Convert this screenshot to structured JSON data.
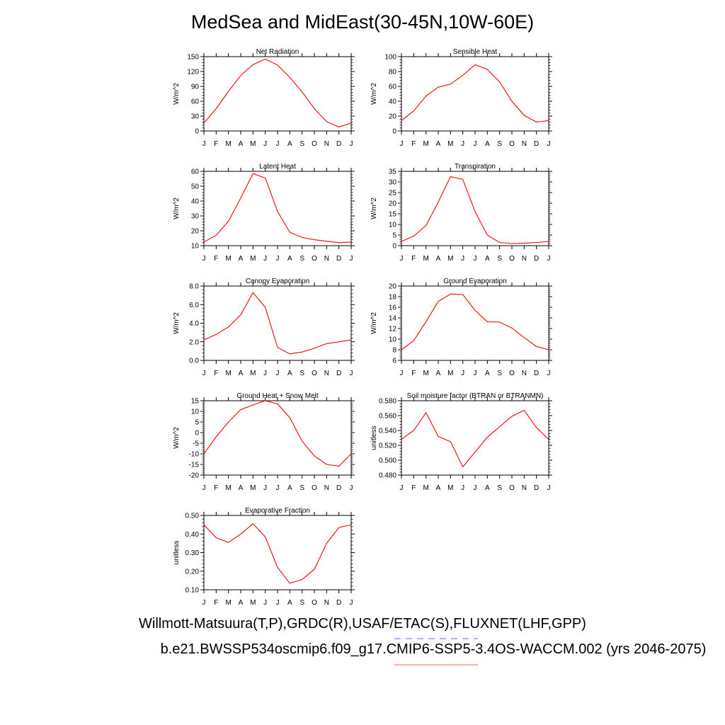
{
  "title": "MedSea and MidEast(30-45N,10W-60E)",
  "footer": {
    "obs": "Willmott-Matsuura(T,P),GRDC(R),USAF/ETAC(S),FLUXNET(LHF,GPP)",
    "case": "b.e21.BWSSP534oscmip6.f09_g17.CMIP6-SSP5-3.4OS-WACCM.002 (yrs 2046-2075)"
  },
  "colors": {
    "model_line": "#ff0000",
    "obs_line": "#6666ff",
    "axis": "#000000"
  },
  "chart_data": [
    {
      "type": "line",
      "title": "Net Radiation",
      "ylabel": "W/m^2",
      "ylim": [
        0,
        150
      ],
      "yticks": [
        0,
        30,
        60,
        90,
        120,
        150
      ],
      "yticklabels": [
        "0",
        "30",
        "60",
        "90",
        "120",
        "150"
      ],
      "x": [
        "J",
        "F",
        "M",
        "A",
        "M",
        "J",
        "J",
        "A",
        "S",
        "O",
        "N",
        "D",
        "J"
      ],
      "values": [
        16,
        45,
        80,
        112,
        134,
        145,
        133,
        108,
        79,
        45,
        19,
        8,
        16
      ],
      "grid": false
    },
    {
      "type": "line",
      "title": "Sensible Heat",
      "ylabel": "W/m^2",
      "ylim": [
        0,
        100
      ],
      "yticks": [
        0,
        20,
        40,
        60,
        80,
        100
      ],
      "yticklabels": [
        "0",
        "20",
        "40",
        "60",
        "80",
        "100"
      ],
      "x": [
        "J",
        "F",
        "M",
        "A",
        "M",
        "J",
        "J",
        "A",
        "S",
        "O",
        "N",
        "D",
        "J"
      ],
      "values": [
        14,
        27,
        47,
        59,
        63,
        75,
        89,
        83,
        66,
        40,
        21,
        12,
        14
      ],
      "grid": false
    },
    {
      "type": "line",
      "title": "Latent Heat",
      "ylabel": "W/m^2",
      "ylim": [
        10,
        60
      ],
      "yticks": [
        10,
        20,
        30,
        40,
        50,
        60
      ],
      "yticklabels": [
        "10",
        "20",
        "30",
        "40",
        "50",
        "60"
      ],
      "x": [
        "J",
        "F",
        "M",
        "A",
        "M",
        "J",
        "J",
        "A",
        "S",
        "O",
        "N",
        "D",
        "J"
      ],
      "values": [
        12.5,
        17,
        26.5,
        42,
        58.5,
        55.5,
        33,
        19,
        15.5,
        14,
        13,
        12,
        12.5
      ],
      "grid": false
    },
    {
      "type": "line",
      "title": "Transpiration",
      "ylabel": "W/m^2",
      "ylim": [
        0,
        35
      ],
      "yticks": [
        0,
        5,
        10,
        15,
        20,
        25,
        30,
        35
      ],
      "yticklabels": [
        "0",
        "5",
        "10",
        "15",
        "20",
        "25",
        "30",
        "35"
      ],
      "x": [
        "J",
        "F",
        "M",
        "A",
        "M",
        "J",
        "J",
        "A",
        "S",
        "O",
        "N",
        "D",
        "J"
      ],
      "values": [
        2,
        4.5,
        9.5,
        20.5,
        32.5,
        31.2,
        16,
        5,
        1.5,
        1,
        1.2,
        1.5,
        2
      ],
      "grid": false
    },
    {
      "type": "line",
      "title": "Canopy Evaporation",
      "ylabel": "W/m^2",
      "ylim": [
        0,
        8
      ],
      "yticks": [
        0,
        2,
        4,
        6,
        8
      ],
      "yticklabels": [
        "0.0",
        "2.0",
        "4.0",
        "6.0",
        "8.0"
      ],
      "x": [
        "J",
        "F",
        "M",
        "A",
        "M",
        "J",
        "J",
        "A",
        "S",
        "O",
        "N",
        "D",
        "J"
      ],
      "values": [
        2.2,
        2.8,
        3.6,
        4.9,
        7.3,
        5.7,
        1.4,
        0.7,
        0.9,
        1.3,
        1.8,
        2,
        2.2
      ],
      "grid": false
    },
    {
      "type": "line",
      "title": "Ground Evaporation",
      "ylabel": "W/m^2",
      "ylim": [
        6,
        20
      ],
      "yticks": [
        6,
        8,
        10,
        12,
        14,
        16,
        18,
        20
      ],
      "yticklabels": [
        "6",
        "8",
        "10",
        "12",
        "14",
        "16",
        "18",
        "20"
      ],
      "x": [
        "J",
        "F",
        "M",
        "A",
        "M",
        "J",
        "J",
        "A",
        "S",
        "O",
        "N",
        "D",
        "J"
      ],
      "values": [
        8,
        9.7,
        13.3,
        17.1,
        18.5,
        18.4,
        15.4,
        13.3,
        13.2,
        12.1,
        10.3,
        8.6,
        8
      ],
      "grid": false
    },
    {
      "type": "line",
      "title": "Ground Heat + Snow Melt",
      "ylabel": "W/m^2",
      "ylim": [
        -20,
        15
      ],
      "yticks": [
        -20,
        -15,
        -10,
        -5,
        0,
        5,
        10,
        15
      ],
      "yticklabels": [
        "-20",
        "-15",
        "-10",
        "-5",
        "0",
        "5",
        "10",
        "15"
      ],
      "x": [
        "J",
        "F",
        "M",
        "A",
        "M",
        "J",
        "J",
        "A",
        "S",
        "O",
        "N",
        "D",
        "J"
      ],
      "values": [
        -10,
        -2,
        5,
        10.8,
        13,
        15,
        13.5,
        7,
        -4,
        -11,
        -15,
        -15.8,
        -10
      ],
      "grid": false
    },
    {
      "type": "line",
      "title": "Soil moisture factor (BTRAN or BTRANMN)",
      "ylabel": "unitless",
      "ylim": [
        0.48,
        0.58
      ],
      "yticks": [
        0.48,
        0.5,
        0.52,
        0.54,
        0.56,
        0.58
      ],
      "yticklabels": [
        "0.480",
        "0.500",
        "0.520",
        "0.540",
        "0.560",
        "0.580"
      ],
      "x": [
        "J",
        "F",
        "M",
        "A",
        "M",
        "J",
        "J",
        "A",
        "S",
        "O",
        "N",
        "D",
        "J"
      ],
      "values": [
        0.528,
        0.54,
        0.564,
        0.532,
        0.525,
        0.491,
        0.511,
        0.531,
        0.545,
        0.559,
        0.567,
        0.544,
        0.528
      ],
      "grid": false
    },
    {
      "type": "line",
      "title": "Evaporative Fraction",
      "ylabel": "unitless",
      "ylim": [
        0.1,
        0.5
      ],
      "yticks": [
        0.1,
        0.2,
        0.3,
        0.4,
        0.5
      ],
      "yticklabels": [
        "0.10",
        "0.20",
        "0.30",
        "0.40",
        "0.50"
      ],
      "x": [
        "J",
        "F",
        "M",
        "A",
        "M",
        "J",
        "J",
        "A",
        "S",
        "O",
        "N",
        "D",
        "J"
      ],
      "values": [
        0.45,
        0.38,
        0.355,
        0.4,
        0.455,
        0.385,
        0.22,
        0.135,
        0.155,
        0.21,
        0.35,
        0.435,
        0.45
      ],
      "grid": false
    }
  ]
}
